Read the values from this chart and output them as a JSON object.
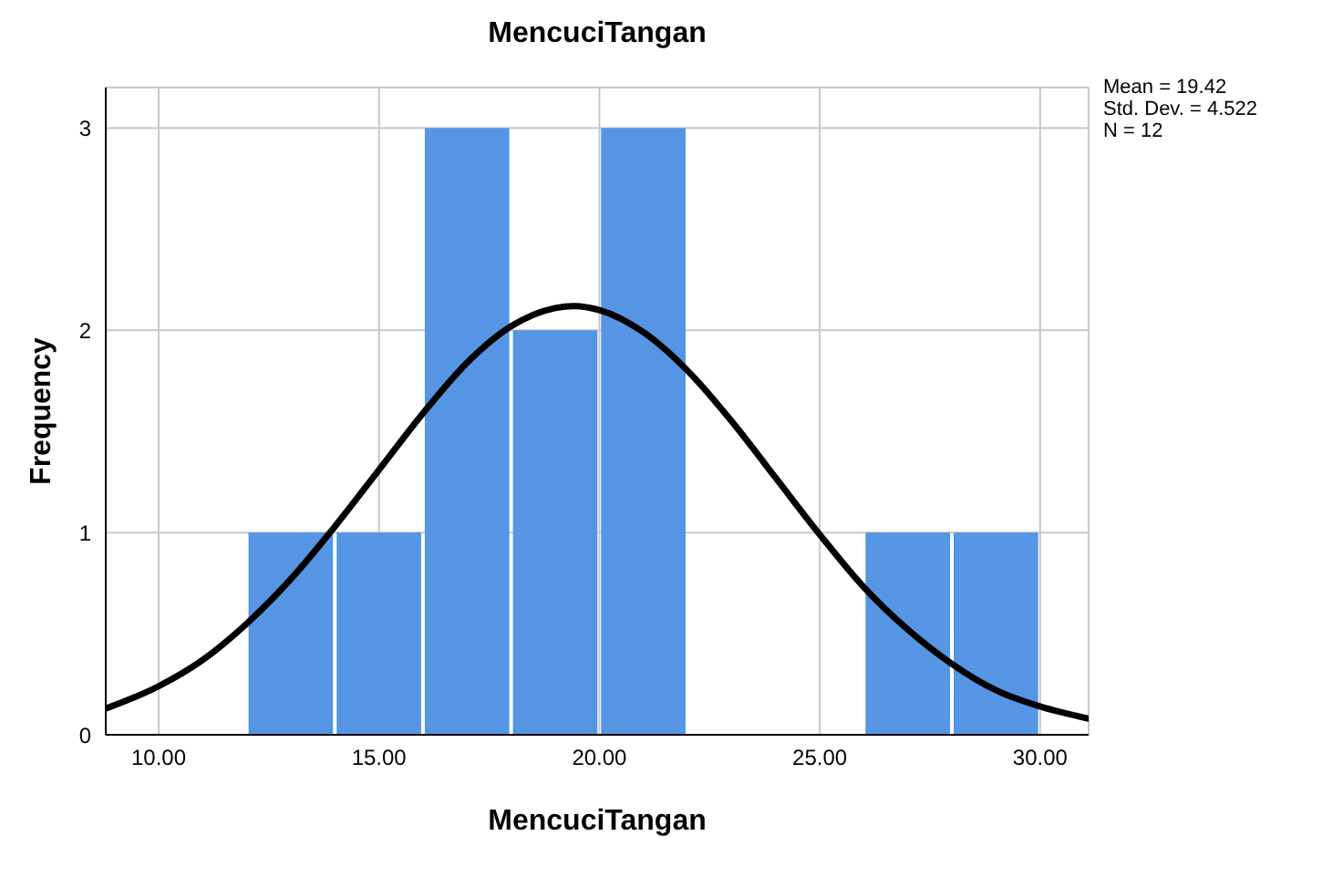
{
  "chart_data": {
    "type": "histogram",
    "title": "MencuciTangan",
    "xlabel": "MencuciTangan",
    "ylabel": "Frequency",
    "bins": [
      12,
      14,
      16,
      18,
      20,
      22,
      24,
      26,
      28,
      30
    ],
    "values": [
      1,
      1,
      3,
      2,
      3,
      0,
      0,
      1,
      1
    ],
    "color": "#5595e4",
    "series": [
      {
        "type": "line",
        "color": "#000000",
        "x": [
          8.8,
          10,
          11,
          12,
          13,
          14,
          15,
          16,
          17,
          18,
          19,
          19.42,
          20,
          21,
          22,
          23,
          24,
          25,
          26,
          27,
          28,
          29,
          30,
          31.1
        ],
        "values": [
          0.13,
          0.24,
          0.37,
          0.55,
          0.77,
          1.03,
          1.31,
          1.59,
          1.84,
          2.02,
          2.11,
          2.12,
          2.1,
          1.99,
          1.8,
          1.55,
          1.27,
          0.99,
          0.73,
          0.52,
          0.35,
          0.22,
          0.14,
          0.08
        ]
      }
    ],
    "xlim": [
      8.8,
      31.1
    ],
    "xticks": [
      {
        "value": 10,
        "label": "10.00"
      },
      {
        "value": 15,
        "label": "15.00"
      },
      {
        "value": 20,
        "label": "20.00"
      },
      {
        "value": 25,
        "label": "25.00"
      },
      {
        "value": 30,
        "label": "30.00"
      }
    ],
    "ylim": [
      0,
      3.2
    ],
    "yticks": [
      0,
      1,
      2,
      3
    ],
    "grid": true,
    "annotations": [
      "Mean = 19.42",
      "Std. Dev. = 4.522",
      "N = 12"
    ]
  }
}
